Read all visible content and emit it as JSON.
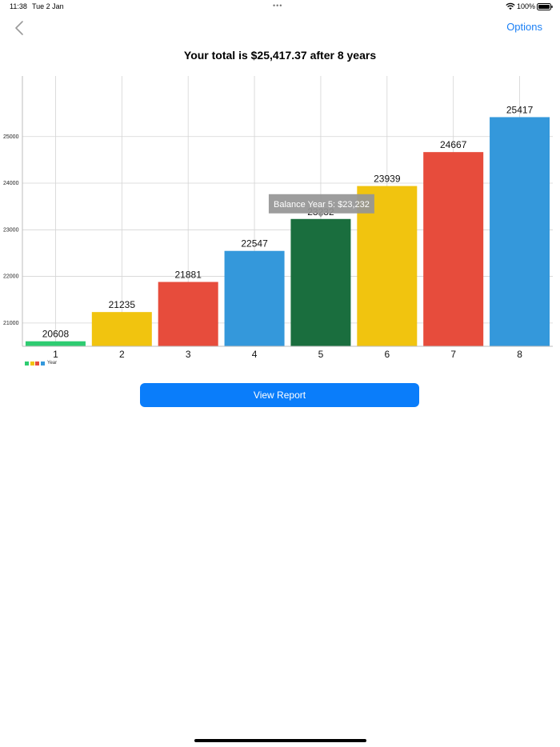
{
  "status_bar": {
    "time": "11:38",
    "date": "Tue 2 Jan",
    "battery": "100%",
    "wifi_icon": "wifi-icon",
    "battery_icon": "battery-full-icon",
    "multitasking_icon": "ellipsis-icon"
  },
  "nav": {
    "back_icon": "chevron-left-icon",
    "options_label": "Options",
    "accent_color": "#1a7ff5"
  },
  "title": "Your total is $25,417.37 after 8 years",
  "chart_data": {
    "type": "bar",
    "categories": [
      "1",
      "2",
      "3",
      "4",
      "5",
      "6",
      "7",
      "8"
    ],
    "values": [
      20608,
      21235,
      21881,
      22547,
      23232,
      23939,
      24667,
      25417
    ],
    "data_labels": [
      "20608",
      "21235",
      "21881",
      "22547",
      "23232",
      "23939",
      "24667",
      "25417"
    ],
    "colors": [
      "#2ecc71",
      "#f1c40f",
      "#e74c3c",
      "#3498db",
      "#1a6e3e",
      "#f1c40f",
      "#e74c3c",
      "#3498db"
    ],
    "y_ticks": [
      21000,
      22000,
      23000,
      24000,
      25000
    ],
    "ylim": [
      20500,
      26300
    ],
    "grid": true,
    "legend": {
      "label": "Year",
      "colors": [
        "#2ecc71",
        "#f1c40f",
        "#e74c3c",
        "#3498db"
      ],
      "placement": "bottom-left"
    },
    "highlighted_index": 4,
    "tooltip": "Balance Year 5: $23,232"
  },
  "buttons": {
    "view_report": "View Report"
  }
}
